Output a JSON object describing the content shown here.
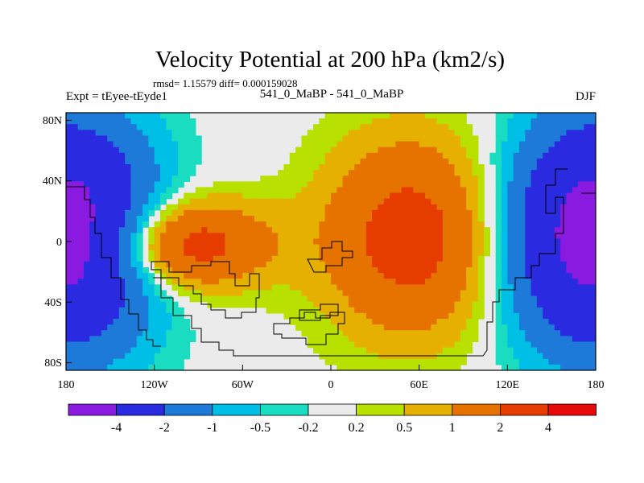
{
  "chart_data": {
    "type": "heatmap",
    "title": "Velocity Potential at 200 hPa (km2/s)",
    "rmsd_line": "rmsd= 1.15579 diff= 0.000159028",
    "left_label": "Expt = tEyee-tEyde1",
    "center_label": "541_0_MaBP - 541_0_MaBP",
    "right_label": "DJF",
    "xlim": [
      -180,
      180
    ],
    "ylim": [
      -90,
      90
    ],
    "x_ticks": [
      {
        "value": -180,
        "label": "180"
      },
      {
        "value": -120,
        "label": "120W"
      },
      {
        "value": -60,
        "label": "60W"
      },
      {
        "value": 0,
        "label": "0"
      },
      {
        "value": 60,
        "label": "60E"
      },
      {
        "value": 120,
        "label": "120E"
      },
      {
        "value": 180,
        "label": "180"
      }
    ],
    "y_ticks": [
      {
        "value": 80,
        "label": "80N"
      },
      {
        "value": 40,
        "label": "40N"
      },
      {
        "value": 0,
        "label": "0"
      },
      {
        "value": -40,
        "label": "40S"
      },
      {
        "value": -80,
        "label": "80S"
      }
    ],
    "colorbar": {
      "colors": [
        "#8a1ae0",
        "#2a2ae0",
        "#1e7ad9",
        "#00bfe6",
        "#19dcc0",
        "#ebebeb",
        "#b8e000",
        "#e6b000",
        "#e67300",
        "#e63c00",
        "#e60a0a"
      ],
      "levels": [
        {
          "value": -4,
          "label": "-4"
        },
        {
          "value": -2,
          "label": "-2"
        },
        {
          "value": -1,
          "label": "-1"
        },
        {
          "value": -0.5,
          "label": "-0.5"
        },
        {
          "value": -0.2,
          "label": "-0.2"
        },
        {
          "value": 0.2,
          "label": "0.2"
        },
        {
          "value": 0.5,
          "label": "0.5"
        },
        {
          "value": 1,
          "label": "1"
        },
        {
          "value": 2,
          "label": "2"
        },
        {
          "value": 4,
          "label": "4"
        }
      ]
    },
    "field_centers": [
      {
        "lon": -100,
        "lat": -2,
        "value": 2.8,
        "sx": 40,
        "sy": 22
      },
      {
        "lon": 55,
        "lat": 3,
        "value": 2.6,
        "sx": 42,
        "sy": 48
      },
      {
        "lon": 178,
        "lat": 5,
        "value": -2.8,
        "sx": 42,
        "sy": 55
      },
      {
        "lon": -178,
        "lat": 5,
        "value": -2.4,
        "sx": 40,
        "sy": 55
      }
    ]
  }
}
